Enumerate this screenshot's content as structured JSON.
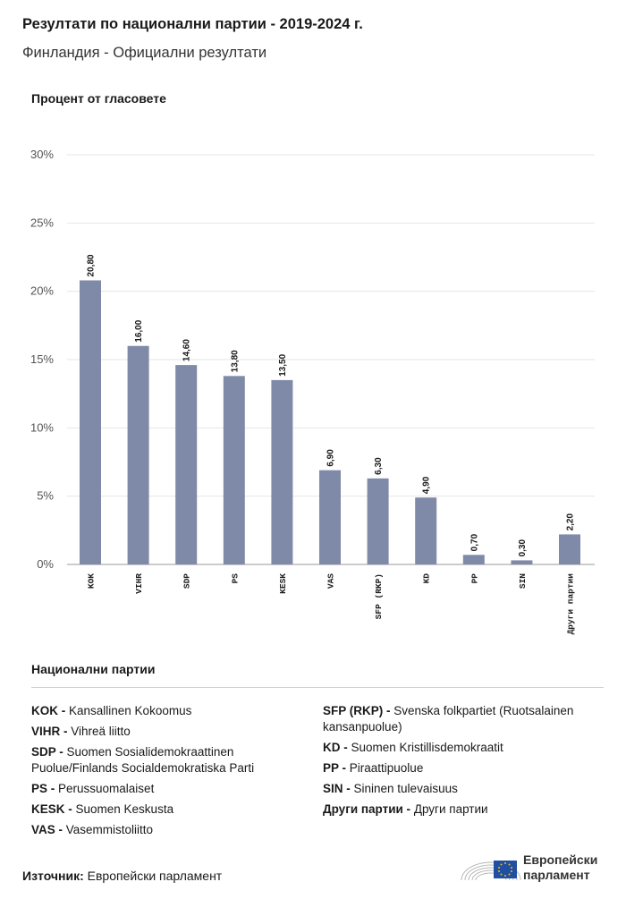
{
  "header": {
    "title": "Резултати по национални партии - 2019-2024 г.",
    "subtitle": "Финландия - Официални резултати"
  },
  "chart_data": {
    "type": "bar",
    "ylabel": "Процент от гласовете",
    "ylim": [
      0,
      30
    ],
    "yticks": [
      "0%",
      "5%",
      "10%",
      "15%",
      "20%",
      "25%",
      "30%"
    ],
    "ytick_values": [
      0,
      5,
      10,
      15,
      20,
      25,
      30
    ],
    "grid": true,
    "categories": [
      "KOK",
      "VIHR",
      "SDP",
      "PS",
      "KESK",
      "VAS",
      "SFP (RKP)",
      "KD",
      "PP",
      "SIN",
      "Други партии"
    ],
    "values": [
      20.8,
      16.0,
      14.6,
      13.8,
      13.5,
      6.9,
      6.3,
      4.9,
      0.7,
      0.3,
      2.2
    ],
    "value_labels": [
      "20,80",
      "16,00",
      "14,60",
      "13,80",
      "13,50",
      "6,90",
      "6,30",
      "4,90",
      "0,70",
      "0,30",
      "2,20"
    ],
    "bar_color": "#7f8aa8"
  },
  "legend": {
    "title": "Национални партии",
    "left": [
      {
        "abbr": "KOK -",
        "name": "Kansallinen Kokoomus"
      },
      {
        "abbr": "VIHR -",
        "name": "Vihreä liitto"
      },
      {
        "abbr": "SDP -",
        "name": "Suomen Sosialidemokraattinen Puolue/Finlands Socialdemokratiska Parti"
      },
      {
        "abbr": "PS -",
        "name": "Perussuomalaiset"
      },
      {
        "abbr": "KESK -",
        "name": "Suomen Keskusta"
      },
      {
        "abbr": "VAS -",
        "name": "Vasemmistoliitto"
      }
    ],
    "right": [
      {
        "abbr": "SFP (RKP) -",
        "name": "Svenska folkpartiet (Ruotsalainen kansanpuolue)"
      },
      {
        "abbr": "KD -",
        "name": "Suomen Kristillisdemokraatit"
      },
      {
        "abbr": "PP -",
        "name": "Piraattipuolue"
      },
      {
        "abbr": "SIN -",
        "name": "Sininen tulevaisuus"
      },
      {
        "abbr": "Други партии -",
        "name": "Други партии"
      }
    ]
  },
  "footer": {
    "source_label": "Източник:",
    "source_value": "Европейски парламент",
    "logo_line1": "Европейски",
    "logo_line2": "парламент"
  }
}
